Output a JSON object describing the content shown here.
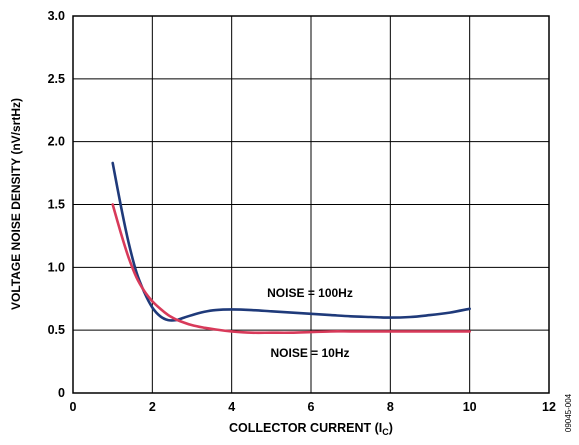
{
  "chart_data": {
    "type": "line",
    "xlabel": "COLLECTOR CURRENT (I",
    "xlabel_sub": "C",
    "xlabel_end": ")",
    "ylabel": "VOLTAGE NOISE DENSITY (nV/srtHz)",
    "xlim": [
      0,
      12
    ],
    "ylim": [
      0,
      3.0
    ],
    "x_ticks": [
      "0",
      "2",
      "4",
      "6",
      "8",
      "10",
      "12"
    ],
    "y_ticks": [
      "0",
      "0.5",
      "1.0",
      "1.5",
      "2.0",
      "2.5",
      "3.0"
    ],
    "grid": true,
    "figure_id": "09045-004",
    "series": [
      {
        "name": "NOISE = 100Hz",
        "color": "#1f3a7a",
        "x": [
          1.0,
          1.2,
          1.4,
          1.6,
          1.8,
          2.0,
          2.2,
          2.4,
          2.6,
          2.8,
          3.0,
          3.3,
          3.6,
          4.0,
          4.5,
          5.0,
          5.5,
          6.0,
          6.5,
          7.0,
          7.5,
          8.0,
          8.5,
          9.0,
          9.5,
          10.0
        ],
        "y": [
          1.83,
          1.5,
          1.2,
          0.96,
          0.8,
          0.68,
          0.61,
          0.58,
          0.58,
          0.6,
          0.62,
          0.645,
          0.66,
          0.665,
          0.66,
          0.65,
          0.64,
          0.63,
          0.62,
          0.61,
          0.605,
          0.6,
          0.605,
          0.62,
          0.64,
          0.67
        ]
      },
      {
        "name": "NOISE = 10Hz",
        "color": "#d83a5a",
        "x": [
          1.0,
          1.2,
          1.4,
          1.6,
          1.8,
          2.0,
          2.2,
          2.4,
          2.6,
          2.8,
          3.0,
          3.3,
          3.6,
          4.0,
          4.5,
          5.0,
          5.5,
          6.0,
          6.5,
          7.0,
          7.5,
          8.0,
          9.0,
          10.0
        ],
        "y": [
          1.5,
          1.28,
          1.08,
          0.92,
          0.81,
          0.73,
          0.67,
          0.62,
          0.585,
          0.56,
          0.54,
          0.52,
          0.505,
          0.49,
          0.48,
          0.48,
          0.48,
          0.485,
          0.49,
          0.49,
          0.49,
          0.49,
          0.49,
          0.49
        ]
      }
    ],
    "annotations": [
      "NOISE = 100Hz",
      "NOISE = 10Hz"
    ]
  }
}
